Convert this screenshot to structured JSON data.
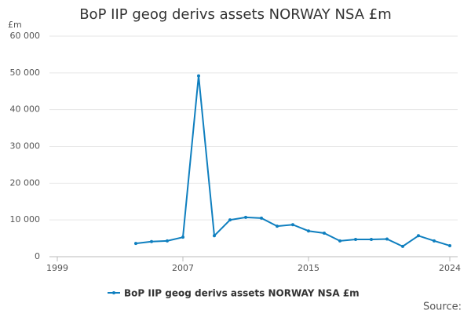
{
  "chart_data": {
    "type": "line",
    "title": "BoP IIP geog derivs assets NORWAY NSA £m",
    "ylabel": "£m",
    "source": "Source:",
    "x": [
      2004,
      2005,
      2006,
      2007,
      2008,
      2009,
      2010,
      2011,
      2012,
      2013,
      2014,
      2015,
      2016,
      2017,
      2018,
      2019,
      2020,
      2021,
      2022,
      2023,
      2024
    ],
    "series": [
      {
        "name": "BoP IIP geog derivs assets NORWAY NSA £m",
        "color": "#0f7fbf",
        "values": [
          3600,
          4100,
          4300,
          5300,
          49200,
          5700,
          10000,
          10700,
          10500,
          8300,
          8700,
          7000,
          6400,
          4300,
          4700,
          4700,
          4800,
          2800,
          5700,
          4300,
          3000
        ]
      }
    ],
    "xlim": [
      1998.5,
      2024.5
    ],
    "xticks": [
      1999,
      2007,
      2015,
      2024
    ],
    "ylim": [
      0,
      60000
    ],
    "yticks": [
      0,
      {
        "value": 10000,
        "label": "10 000"
      },
      {
        "value": 20000,
        "label": "20 000"
      },
      {
        "value": 30000,
        "label": "30 000"
      },
      {
        "value": 40000,
        "label": "40 000"
      },
      {
        "value": 50000,
        "label": "50 000"
      },
      {
        "value": 60000,
        "label": "60 000"
      }
    ],
    "grid": true
  }
}
